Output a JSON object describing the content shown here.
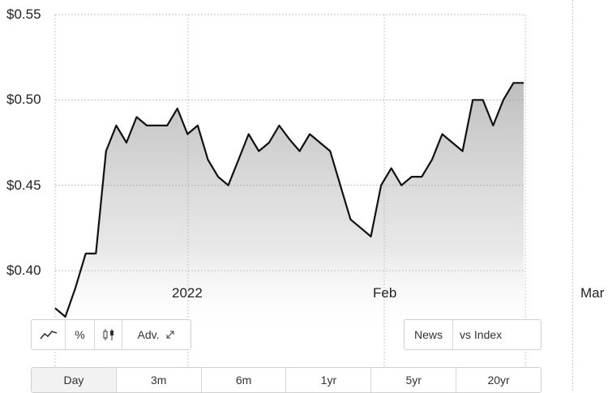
{
  "chart_data": {
    "type": "area",
    "y_ticks": [
      "$0.55",
      "$0.50",
      "$0.45",
      "$0.40"
    ],
    "y_tick_values": [
      0.55,
      0.5,
      0.45,
      0.4
    ],
    "ylim": [
      0.36,
      0.55
    ],
    "x_tick_labels": [
      "2022",
      "Feb",
      "Mar"
    ],
    "series": [
      {
        "values": [
          0.378,
          0.373,
          0.39,
          0.41,
          0.41,
          0.47,
          0.485,
          0.475,
          0.49,
          0.485,
          0.485,
          0.485,
          0.495,
          0.48,
          0.485,
          0.465,
          0.455,
          0.45,
          0.465,
          0.48,
          0.47,
          0.475,
          0.485,
          0.477,
          0.47,
          0.48,
          0.475,
          0.47,
          0.45,
          0.43,
          0.425,
          0.42,
          0.45,
          0.46,
          0.45,
          0.455,
          0.455,
          0.465,
          0.48,
          0.475,
          0.47,
          0.5,
          0.5,
          0.485,
          0.5,
          0.51,
          0.51
        ]
      }
    ],
    "grid": true
  },
  "toolbar_left": {
    "line_icon": "line-chart-icon",
    "percent_label": "%",
    "candle_icon": "candlestick-icon",
    "adv_label": "Adv.",
    "expand_icon": "expand-arrow-icon"
  },
  "toolbar_right": {
    "news_label": "News",
    "vs_index_label": "vs Index"
  },
  "ranges": [
    "Day",
    "3m",
    "6m",
    "1yr",
    "5yr",
    "20yr"
  ],
  "active_range": "Day"
}
